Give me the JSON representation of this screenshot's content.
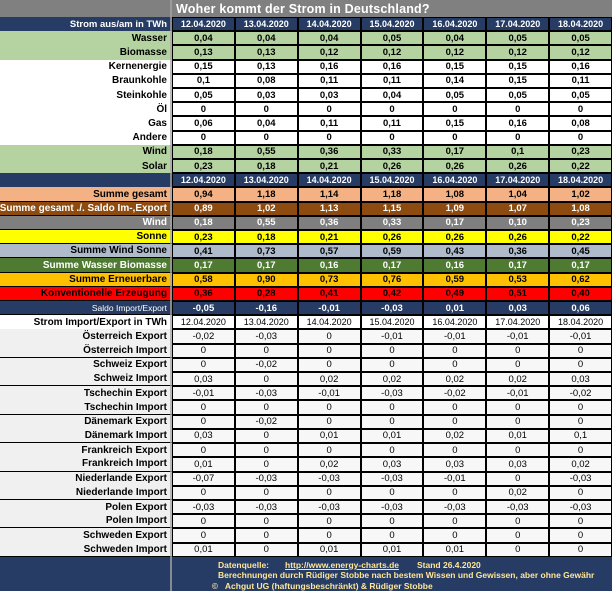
{
  "title": "Woher kommt der Strom in Deutschland?",
  "colors": {
    "title_bar_gray": "#808080",
    "header_navy": "#263C64",
    "renewable_green": "#B4D3A1",
    "sum_salmon": "#F4B183",
    "sum_brown": "#8E4B10",
    "wind_gray": "#7F7F7F",
    "sonne_yellow": "#FFFF00",
    "wind_sonne_bluegray": "#AFBACB",
    "wasser_biomasse_green": "#4E7A31",
    "erneuerbare_amber": "#FFC000",
    "konventionell_red": "#FF0000",
    "footer_text_yellow": "#FFE699"
  },
  "chart_data": {
    "type": "table",
    "title": "Woher kommt der Strom in Deutschland?",
    "categories": [
      "12.04.2020",
      "13.04.2020",
      "14.04.2020",
      "15.04.2020",
      "16.04.2020",
      "17.04.2020",
      "18.04.2020"
    ],
    "sections": [
      {
        "id": "generation",
        "header_label": "Strom aus/am in TWh",
        "rows": [
          {
            "label": "Wasser",
            "style": "green",
            "values": [
              "0,04",
              "0,04",
              "0,04",
              "0,05",
              "0,04",
              "0,05",
              "0,05"
            ]
          },
          {
            "label": "Biomasse",
            "style": "green",
            "values": [
              "0,13",
              "0,13",
              "0,12",
              "0,12",
              "0,12",
              "0,12",
              "0,12"
            ]
          },
          {
            "label": "Kernenergie",
            "style": "white",
            "values": [
              "0,15",
              "0,13",
              "0,16",
              "0,16",
              "0,15",
              "0,15",
              "0,16"
            ]
          },
          {
            "label": "Braunkohle",
            "style": "white",
            "values": [
              "0,1",
              "0,08",
              "0,11",
              "0,11",
              "0,14",
              "0,15",
              "0,11"
            ]
          },
          {
            "label": "Steinkohle",
            "style": "white",
            "values": [
              "0,05",
              "0,03",
              "0,03",
              "0,04",
              "0,05",
              "0,05",
              "0,05"
            ]
          },
          {
            "label": "Öl",
            "style": "white",
            "values": [
              "0",
              "0",
              "0",
              "0",
              "0",
              "0",
              "0"
            ]
          },
          {
            "label": "Gas",
            "style": "white",
            "values": [
              "0,06",
              "0,04",
              "0,11",
              "0,11",
              "0,15",
              "0,16",
              "0,08"
            ]
          },
          {
            "label": "Andere",
            "style": "white",
            "values": [
              "0",
              "0",
              "0",
              "0",
              "0",
              "0",
              "0"
            ]
          },
          {
            "label": "Wind",
            "style": "green",
            "values": [
              "0,18",
              "0,55",
              "0,36",
              "0,33",
              "0,17",
              "0,1",
              "0,23"
            ]
          },
          {
            "label": "Solar",
            "style": "green",
            "values": [
              "0,23",
              "0,18",
              "0,21",
              "0,26",
              "0,26",
              "0,26",
              "0,22"
            ]
          }
        ]
      },
      {
        "id": "summary",
        "header_label": "",
        "rows": [
          {
            "label": "Summe gesamt",
            "style": "salmon",
            "values": [
              "0,94",
              "1,18",
              "1,14",
              "1,18",
              "1,08",
              "1,04",
              "1,02"
            ]
          },
          {
            "label": "Summe gesamt ./. Saldo Im-,Export",
            "style": "brown",
            "values": [
              "0,89",
              "1,02",
              "1,13",
              "1,15",
              "1,09",
              "1,07",
              "1,08"
            ]
          },
          {
            "label": "Wind",
            "style": "gray",
            "values": [
              "0,18",
              "0,55",
              "0,36",
              "0,33",
              "0,17",
              "0,10",
              "0,23"
            ]
          },
          {
            "label": "Sonne",
            "style": "yellow",
            "values": [
              "0,23",
              "0,18",
              "0,21",
              "0,26",
              "0,26",
              "0,26",
              "0,22"
            ]
          },
          {
            "label": "Summe Wind Sonne",
            "style": "bluegray",
            "values": [
              "0,41",
              "0,73",
              "0,57",
              "0,59",
              "0,43",
              "0,36",
              "0,45"
            ]
          },
          {
            "label": "Summe Wasser Biomasse",
            "style": "darkgreen",
            "values": [
              "0,17",
              "0,17",
              "0,16",
              "0,17",
              "0,16",
              "0,17",
              "0,17"
            ]
          },
          {
            "label": "Summe Erneuerbare",
            "style": "amber",
            "values": [
              "0,58",
              "0,90",
              "0,73",
              "0,76",
              "0,59",
              "0,53",
              "0,62"
            ]
          },
          {
            "label": "Konventionelle Erzeugung",
            "style": "red",
            "values": [
              "0,36",
              "0,28",
              "0,41",
              "0,42",
              "0,49",
              "0,51",
              "0,40"
            ]
          },
          {
            "label": "Saldo Import/Export",
            "style": "navy",
            "small": true,
            "values": [
              "-0,05",
              "-0,16",
              "-0,01",
              "-0,03",
              "0,01",
              "0,03",
              "0,06"
            ]
          }
        ]
      },
      {
        "id": "import",
        "header_label": "Strom Import/Export in TWh",
        "rows": [
          {
            "label": "Österreich Export",
            "values": [
              "-0,02",
              "-0,03",
              "0",
              "-0,01",
              "-0,01",
              "-0,01",
              "-0,01"
            ]
          },
          {
            "label": "Österreich Import",
            "values": [
              "0",
              "0",
              "0",
              "0",
              "0",
              "0",
              "0"
            ]
          },
          {
            "label": "Schweiz Export",
            "values": [
              "0",
              "-0,02",
              "0",
              "0",
              "0",
              "0",
              "0"
            ]
          },
          {
            "label": "Schweiz Import",
            "values": [
              "0,03",
              "0",
              "0,02",
              "0,02",
              "0,02",
              "0,02",
              "0,03"
            ]
          },
          {
            "label": "Tschechin Export",
            "values": [
              "-0,01",
              "-0,03",
              "-0,01",
              "-0,03",
              "-0,02",
              "-0,01",
              "-0,02"
            ]
          },
          {
            "label": "Tschechin Import",
            "values": [
              "0",
              "0",
              "0",
              "0",
              "0",
              "0",
              "0"
            ]
          },
          {
            "label": "Dänemark Export",
            "values": [
              "0",
              "-0,02",
              "0",
              "0",
              "0",
              "0",
              "0"
            ]
          },
          {
            "label": "Dänemark Import",
            "values": [
              "0,03",
              "0",
              "0,01",
              "0,01",
              "0,02",
              "0,01",
              "0,1"
            ]
          },
          {
            "label": "Frankreich Export",
            "values": [
              "0",
              "0",
              "0",
              "0",
              "0",
              "0",
              "0"
            ]
          },
          {
            "label": "Frankreich Import",
            "values": [
              "0,01",
              "0",
              "0,02",
              "0,03",
              "0,03",
              "0,03",
              "0,02"
            ]
          },
          {
            "label": "Niederlande Export",
            "values": [
              "-0,07",
              "-0,03",
              "-0,03",
              "-0,03",
              "-0,01",
              "0",
              "-0,03"
            ]
          },
          {
            "label": "Niederlande Import",
            "values": [
              "0",
              "0",
              "0",
              "0",
              "0",
              "0,02",
              "0"
            ]
          },
          {
            "label": "Polen  Export",
            "values": [
              "-0,03",
              "-0,03",
              "-0,03",
              "-0,03",
              "-0,03",
              "-0,03",
              "-0,03"
            ]
          },
          {
            "label": "Polen Import",
            "values": [
              "0",
              "0",
              "0",
              "0",
              "0",
              "0",
              "0"
            ]
          },
          {
            "label": "Schweden Export",
            "values": [
              "0",
              "0",
              "0",
              "0",
              "0",
              "0",
              "0"
            ]
          },
          {
            "label": "Schweden Import",
            "values": [
              "0,01",
              "0",
              "0,01",
              "0,01",
              "0,01",
              "0",
              "0"
            ]
          }
        ]
      }
    ]
  },
  "footer": {
    "source_label": "Datenquelle:",
    "source_link": "http://www.energy-charts.de",
    "stand": "Stand 26.4.2020",
    "disclaimer": "Berechnungen durch Rüdiger Stobbe nach bestem Wissen und Gewissen, aber ohne Gewähr",
    "copyright_symbol": "©",
    "copyright": "Achgut UG (haftungsbeschränkt) & Rüdiger Stobbe"
  }
}
